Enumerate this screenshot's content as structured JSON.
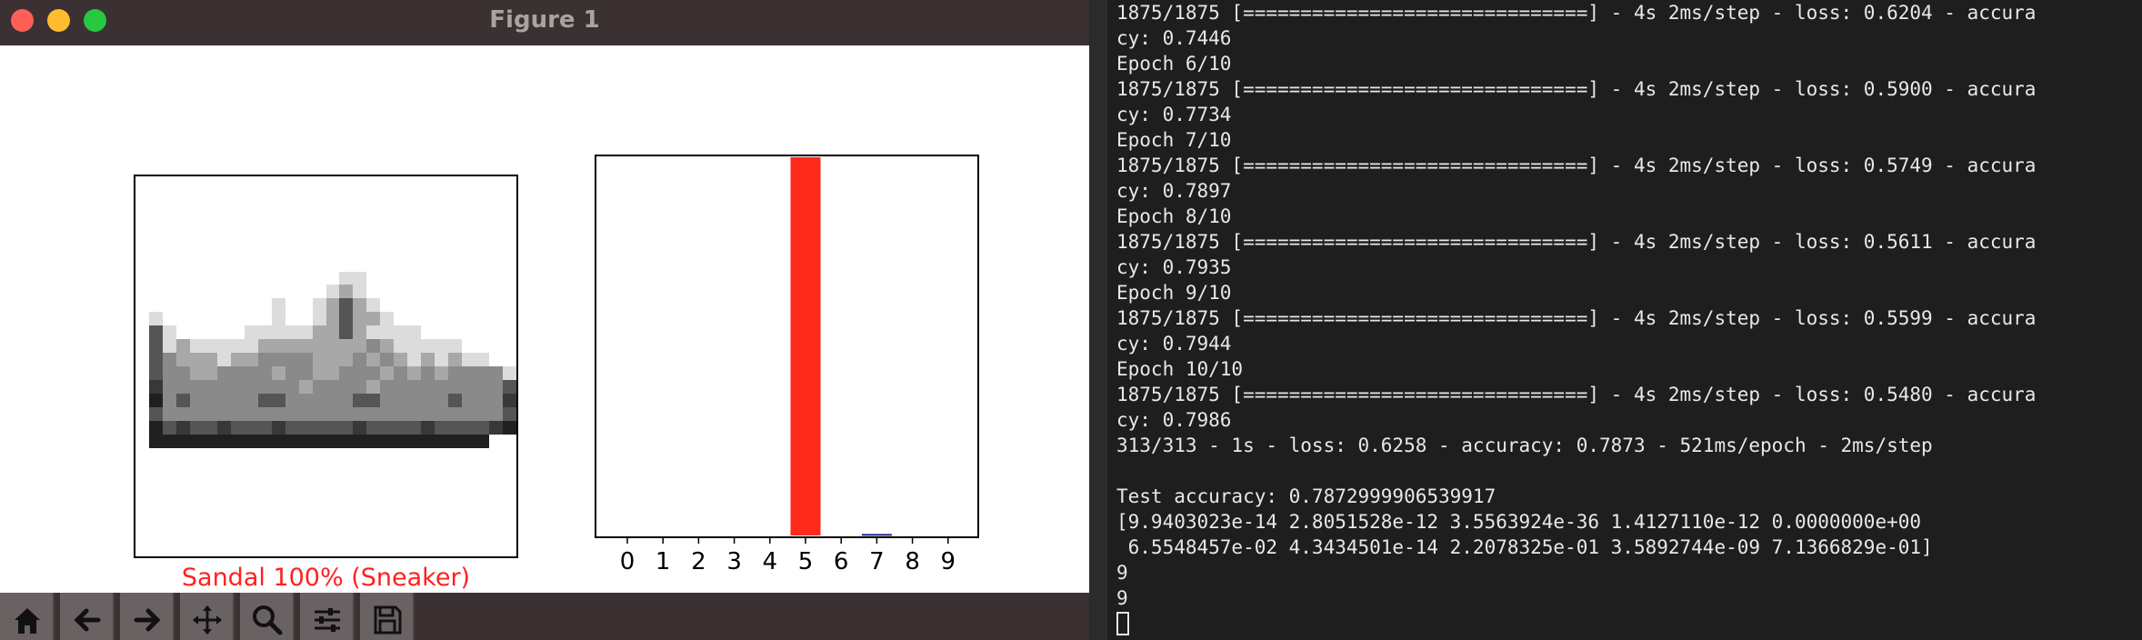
{
  "window": {
    "title": "Figure 1"
  },
  "figure": {
    "image_caption": "Sandal 100% (Sneaker)",
    "caption_color": "#ff2020"
  },
  "chart_data": {
    "type": "bar",
    "categories": [
      "0",
      "1",
      "2",
      "3",
      "4",
      "5",
      "6",
      "7",
      "8",
      "9"
    ],
    "values": [
      0,
      0,
      0,
      0,
      0,
      1.0,
      0,
      0.004,
      0,
      0
    ],
    "highlight": {
      "5": "#ff2a1a",
      "7": "#1f1f8a"
    },
    "default_color": "#777777",
    "ylim": [
      0,
      1
    ],
    "title": "",
    "xlabel": "",
    "ylabel": ""
  },
  "sneaker_image": {
    "description_rows": 28,
    "rows": [
      "............................",
      "............................",
      "............................",
      "............................",
      "............................",
      "............................",
      "............................",
      "...............,,...........",
      "..............,:,...........",
      "..........,..,:=:,..........",
      ".,........,..,:=::,.........",
      ".=,.....,,,,,::=:,,,,.......",
      ".=,:,,,,,::::::::;:,,,,,....",
      ".=;:::,::;;;;:::;:;:,:,:,,..",
      ".=;;::;;;;:;;::;;;:;:;:;;;;,",
      ".+;;;;;;;;;;:;;;;:;;;;;;;;;=",
      ".%;=;;;;;==;;;;;==;;;;;=;;;+",
      ".=;;;;;;;;;;;;;;;;;;;;;;;;;=",
      ".%=+==+===+=====+====+====+%",
      ".%%%%%%%%%%%%%%%%%%%%%%%%%..",
      "............................",
      "............................",
      "............................",
      "............................",
      "............................",
      "............................",
      "............................",
      "............................"
    ]
  },
  "toolbar": {
    "buttons": [
      "home-icon",
      "back-arrow-icon",
      "forward-arrow-icon",
      "pan-icon",
      "zoom-icon",
      "configure-subplots-icon",
      "save-icon"
    ]
  },
  "terminal": {
    "lines": [
      "1875/1875 [==============================] - 4s 2ms/step - loss: 0.6204 - accura",
      "cy: 0.7446",
      "Epoch 6/10",
      "1875/1875 [==============================] - 4s 2ms/step - loss: 0.5900 - accura",
      "cy: 0.7734",
      "Epoch 7/10",
      "1875/1875 [==============================] - 4s 2ms/step - loss: 0.5749 - accura",
      "cy: 0.7897",
      "Epoch 8/10",
      "1875/1875 [==============================] - 4s 2ms/step - loss: 0.5611 - accura",
      "cy: 0.7935",
      "Epoch 9/10",
      "1875/1875 [==============================] - 4s 2ms/step - loss: 0.5599 - accura",
      "cy: 0.7944",
      "Epoch 10/10",
      "1875/1875 [==============================] - 4s 2ms/step - loss: 0.5480 - accura",
      "cy: 0.7986",
      "313/313 - 1s - loss: 0.6258 - accuracy: 0.7873 - 521ms/epoch - 2ms/step",
      "",
      "Test accuracy: 0.7872999906539917",
      "[9.9403023e-14 2.8051528e-12 3.5563924e-36 1.4127110e-12 0.0000000e+00",
      " 6.5548457e-02 4.3434501e-14 2.2078325e-01 3.5892744e-09 7.1366829e-01]",
      "9",
      "9"
    ]
  }
}
